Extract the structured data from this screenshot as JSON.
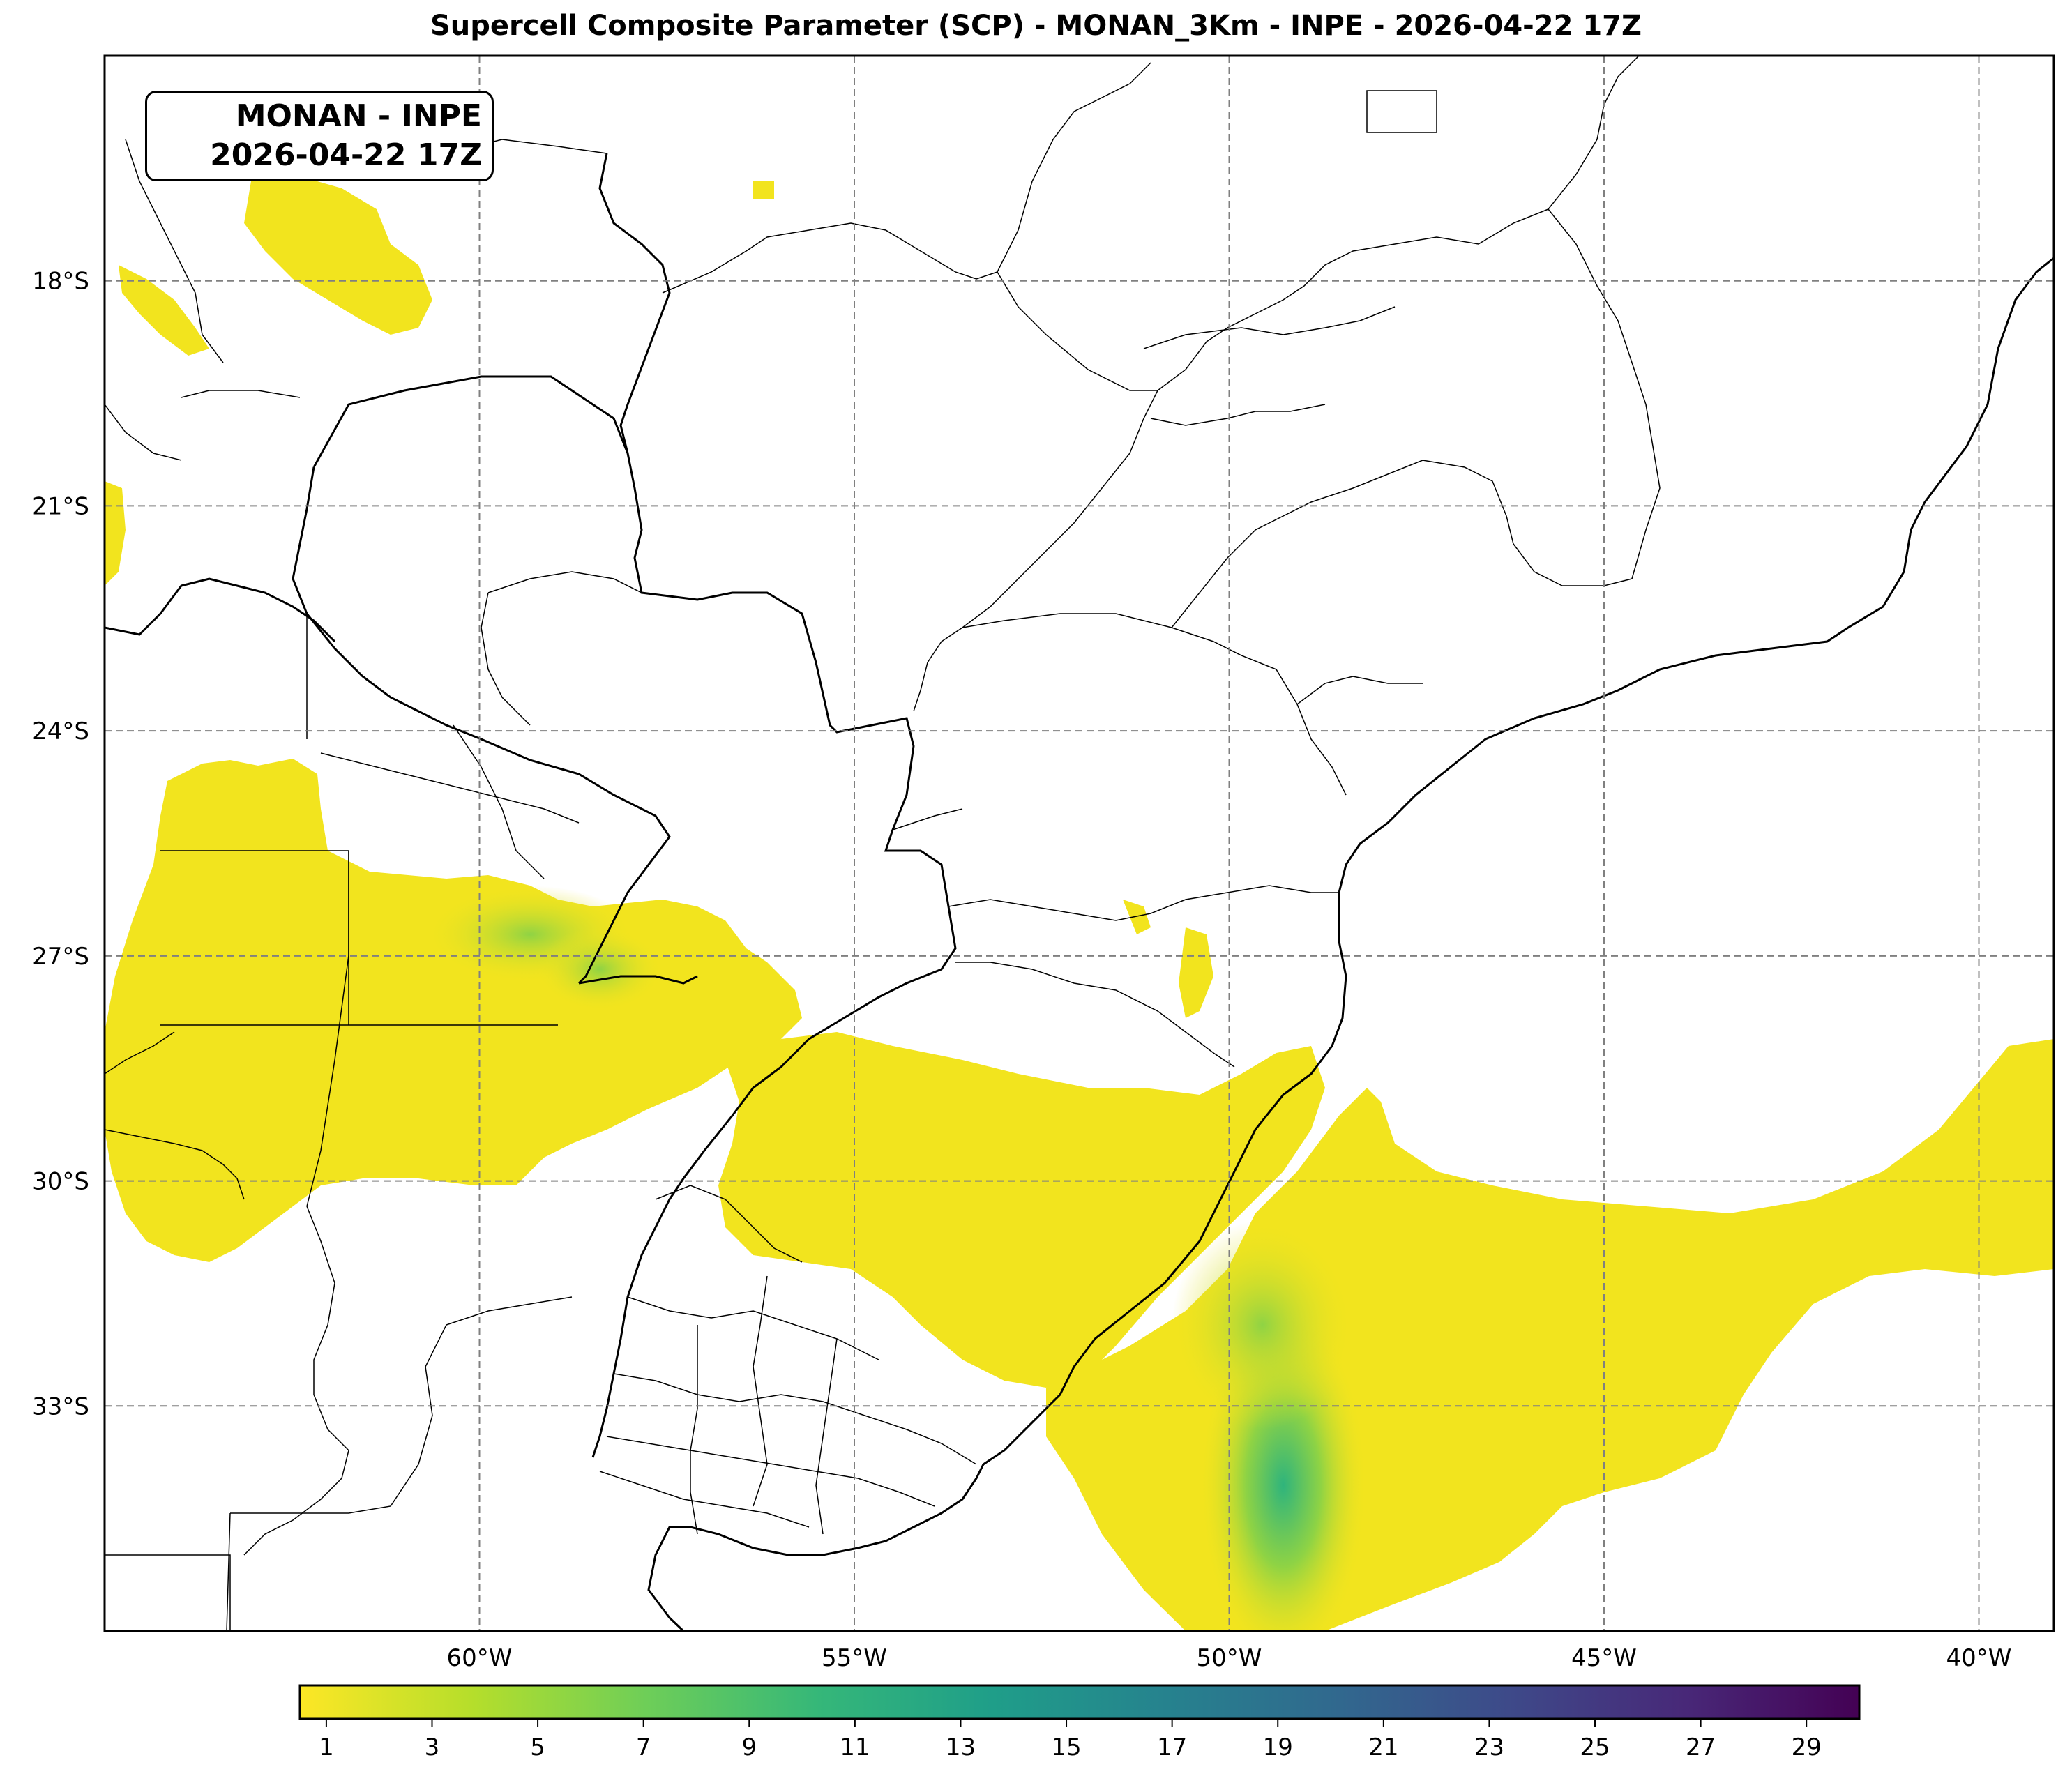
{
  "map": {
    "title": "Supercell Composite Parameter (SCP) - MONAN_3Km - INPE - 2026-04-22 17Z",
    "info_box": {
      "line1": "MONAN - INPE",
      "line2": "2026-04-22 17Z"
    },
    "extent": {
      "lon_min": -65,
      "lon_max": -39,
      "lat_min": -36,
      "lat_max": -15
    },
    "lat_labels": [
      {
        "lat": -18,
        "text": "18°S"
      },
      {
        "lat": -21,
        "text": "21°S"
      },
      {
        "lat": -24,
        "text": "24°S"
      },
      {
        "lat": -27,
        "text": "27°S"
      },
      {
        "lat": -30,
        "text": "30°S"
      },
      {
        "lat": -33,
        "text": "33°S"
      }
    ],
    "lon_labels": [
      {
        "lon": -60,
        "text": "60°W"
      },
      {
        "lon": -55,
        "text": "55°W"
      },
      {
        "lon": -50,
        "text": "50°W"
      },
      {
        "lon": -45,
        "text": "45°W"
      },
      {
        "lon": -40,
        "text": "40°W"
      }
    ],
    "colorbar": {
      "colormap": "viridis_r",
      "range": [
        0.5,
        30
      ],
      "ticks": [
        1,
        3,
        5,
        7,
        9,
        11,
        13,
        15,
        17,
        19,
        21,
        23,
        25,
        27,
        29
      ],
      "colors": [
        "#fde725",
        "#b5de2b",
        "#6ece58",
        "#35b779",
        "#1f9e89",
        "#26828e",
        "#31688e",
        "#3e4989",
        "#482878",
        "#440154"
      ]
    },
    "colors": {
      "field_low": "#f2e41e",
      "field_mid": "#a6d93a",
      "field_high": "#2fb47c",
      "grid": "#808080"
    }
  }
}
